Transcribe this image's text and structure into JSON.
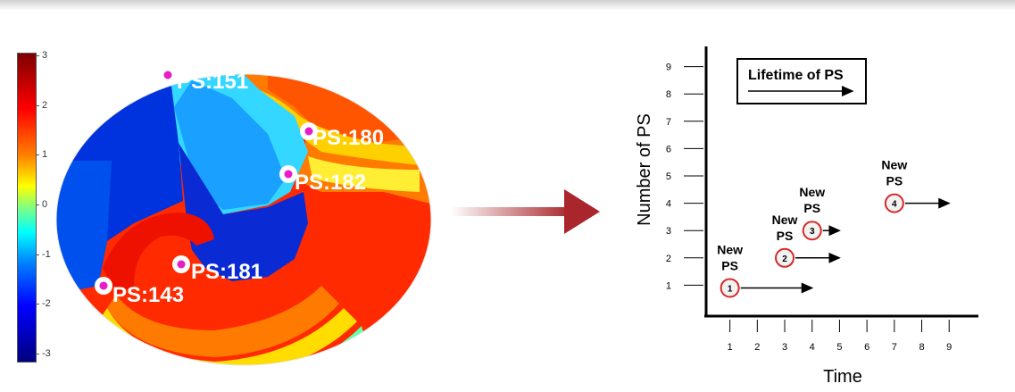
{
  "colorbar": {
    "ticks": [
      "3",
      "2",
      "1",
      "0",
      "-1",
      "-2",
      "-3"
    ]
  },
  "phase_map": {
    "phase_singularities": [
      {
        "label": "PS:151"
      },
      {
        "label": "PS:180"
      },
      {
        "label": "PS:182"
      },
      {
        "label": "PS:181"
      },
      {
        "label": "PS:143"
      }
    ]
  },
  "diagram": {
    "legend_label": "Lifetime of PS",
    "new_ps_line1": "New",
    "new_ps_line2": "PS"
  },
  "chart_data": {
    "type": "scatter",
    "xlabel": "Time",
    "ylabel": "Number of PS",
    "x_ticks": [
      "1",
      "2",
      "3",
      "4",
      "5",
      "6",
      "7",
      "8",
      "9"
    ],
    "y_ticks": [
      "1",
      "2",
      "3",
      "4",
      "5",
      "6",
      "7",
      "8",
      "9"
    ],
    "xlim": [
      0,
      9.9
    ],
    "ylim": [
      0,
      9.9
    ],
    "points": [
      {
        "id": "1",
        "x": 1,
        "y": 0.9,
        "arrow_to": 4
      },
      {
        "id": "2",
        "x": 3,
        "y": 2,
        "arrow_to": 5
      },
      {
        "id": "3",
        "x": 4,
        "y": 3,
        "arrow_to": 5
      },
      {
        "id": "4",
        "x": 7,
        "y": 4,
        "arrow_to": 9
      }
    ]
  }
}
